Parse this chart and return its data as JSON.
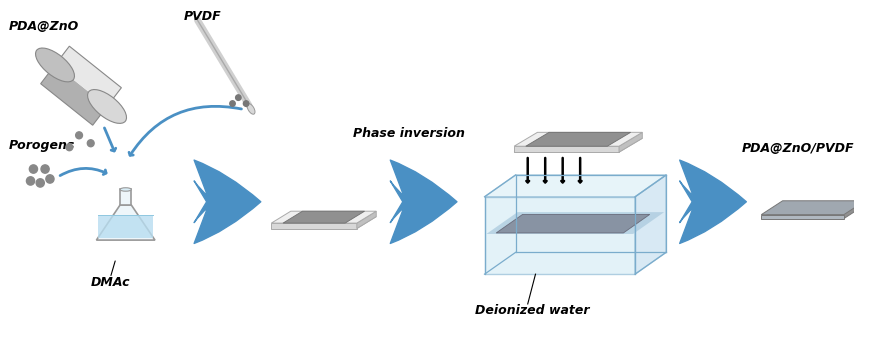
{
  "bg_color": "#ffffff",
  "blue_arrow_color": "#4a90c4",
  "text_color": "#000000",
  "labels": {
    "pda_zno": "PDA@ZnO",
    "pvdf": "PVDF",
    "porogens": "Porogens",
    "dmac": "DMAc",
    "phase_inv": "Phase inversion",
    "deionized": "Deionized water",
    "product": "PDA@ZnO/PVDF"
  },
  "figsize": [
    8.78,
    3.47
  ],
  "dpi": 100
}
